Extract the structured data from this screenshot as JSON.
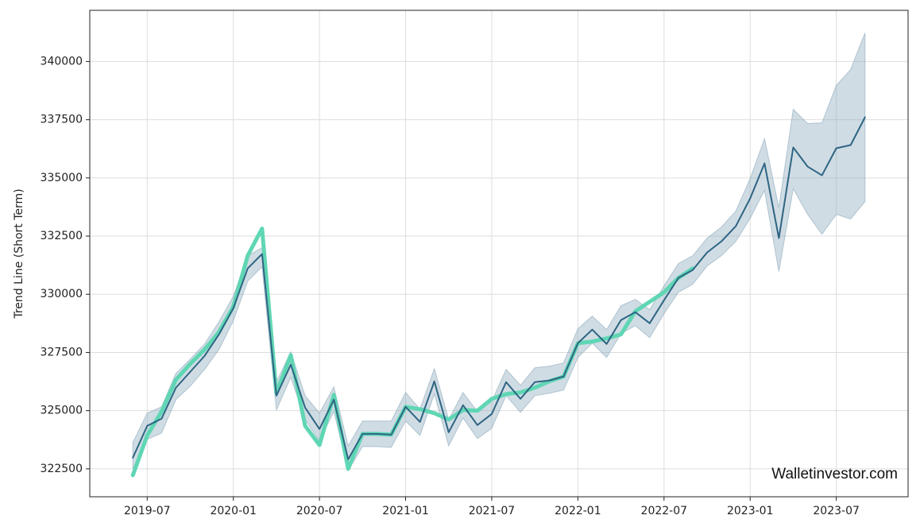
{
  "chart_data": {
    "type": "line",
    "ylabel": "Trend Line (Short Term)",
    "watermark": "Walletinvestor.com",
    "grid": true,
    "xlim": [
      "2019-03",
      "2023-12"
    ],
    "xticks": [
      "2019-07",
      "2020-01",
      "2020-07",
      "2021-01",
      "2021-07",
      "2022-01",
      "2022-07",
      "2023-01",
      "2023-07"
    ],
    "ylim": [
      321300,
      342200
    ],
    "yticks": [
      322500,
      325000,
      327500,
      330000,
      332500,
      335000,
      337500,
      340000
    ],
    "x": [
      "2019-06",
      "2019-07",
      "2019-08",
      "2019-09",
      "2019-10",
      "2019-11",
      "2019-12",
      "2020-01",
      "2020-02",
      "2020-03",
      "2020-04",
      "2020-05",
      "2020-06",
      "2020-07",
      "2020-08",
      "2020-09",
      "2020-10",
      "2020-11",
      "2020-12",
      "2021-01",
      "2021-02",
      "2021-03",
      "2021-04",
      "2021-05",
      "2021-06",
      "2021-07",
      "2021-08",
      "2021-09",
      "2021-10",
      "2021-11",
      "2021-12",
      "2022-01",
      "2022-02",
      "2022-03",
      "2022-04",
      "2022-05",
      "2022-06",
      "2022-07",
      "2022-08",
      "2022-09",
      "2022-10",
      "2022-11",
      "2022-12",
      "2023-01",
      "2023-02",
      "2023-03",
      "2023-04",
      "2023-05",
      "2023-06",
      "2023-07",
      "2023-08",
      "2023-09"
    ],
    "band": {
      "color": "#8aa8bb",
      "upper": [
        323628,
        324892,
        325166,
        326601,
        327217,
        327866,
        328823,
        329917,
        331660,
        332002,
        326225,
        327524,
        325644,
        324892,
        326020,
        323491,
        324551,
        324551,
        324551,
        325781,
        325063,
        326807,
        324619,
        325781,
        324961,
        325405,
        326772,
        326089,
        326841,
        326909,
        327046,
        328516,
        329062,
        328481,
        329507,
        329780,
        329336,
        330361,
        331318,
        331660,
        332412,
        332891,
        333574,
        334976,
        336685,
        333711,
        337949,
        337334,
        337368,
        338975,
        339658,
        341230
      ],
      "lower": [
        322500,
        323764,
        324038,
        325473,
        326055,
        326772,
        327627,
        328857,
        330566,
        331182,
        325029,
        326431,
        324619,
        323696,
        324961,
        322431,
        323457,
        323457,
        323423,
        324551,
        323935,
        325713,
        323491,
        324687,
        323799,
        324243,
        325644,
        324927,
        325644,
        325747,
        325884,
        327285,
        327900,
        327285,
        328310,
        328652,
        328140,
        329165,
        330088,
        330430,
        331216,
        331660,
        332275,
        333267,
        334463,
        330976,
        334531,
        333437,
        332583,
        333437,
        333232,
        333984
      ]
    },
    "series": [
      {
        "color": "#5fd6b4",
        "values": [
          322227,
          323935,
          324961,
          326328,
          327012,
          327627,
          328379,
          329473,
          331660,
          332822,
          325747,
          327388,
          324346,
          323525,
          325678,
          322500,
          324004,
          324004,
          323970,
          325166,
          325063,
          324892,
          324619,
          325029,
          324995,
          325508,
          325713,
          325781,
          325986,
          326260,
          326465,
          327900,
          327969,
          328105,
          328277,
          329267,
          329678,
          330088,
          330703,
          331113,
          null,
          null,
          null,
          null,
          null,
          null,
          null,
          null,
          null,
          null,
          null,
          null
        ]
      },
      {
        "color": "#2e6583",
        "values": [
          322978,
          324346,
          324654,
          325987,
          326670,
          327354,
          328277,
          329404,
          331113,
          331728,
          325645,
          326978,
          325132,
          324209,
          325474,
          322910,
          324004,
          324004,
          323970,
          325166,
          324517,
          326260,
          324072,
          325234,
          324380,
          324859,
          326226,
          325508,
          326226,
          326294,
          326465,
          327900,
          328482,
          327866,
          328892,
          329233,
          328755,
          329746,
          330703,
          331045,
          331797,
          332275,
          332925,
          334121,
          335625,
          332412,
          336309,
          335488,
          335112,
          336274,
          336411,
          337607
        ]
      }
    ]
  }
}
